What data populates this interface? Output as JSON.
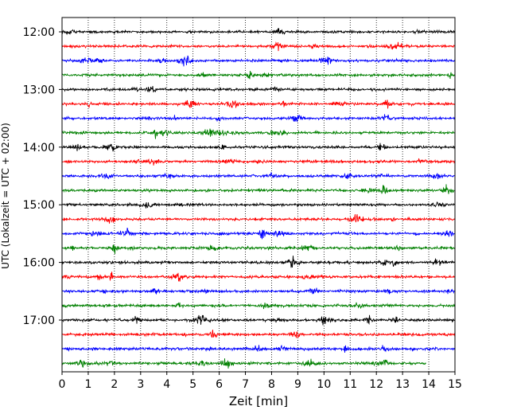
{
  "chart_data": {
    "type": "line",
    "title": "",
    "xlabel": "Zeit  [min]",
    "ylabel": "UTC (Lokalzeit = UTC + 02:00)",
    "xlim": [
      0,
      15
    ],
    "x_ticks": [
      "0",
      "1",
      "2",
      "3",
      "4",
      "5",
      "6",
      "7",
      "8",
      "9",
      "10",
      "11",
      "12",
      "13",
      "14",
      "15"
    ],
    "y_ticks": [
      "12:00",
      "13:00",
      "14:00",
      "15:00",
      "16:00",
      "17:00"
    ],
    "grid": "vertical dotted",
    "trace_colors": [
      "#000000",
      "#ff0000",
      "#0000ff",
      "#008000"
    ],
    "traces": [
      {
        "start": "12:00",
        "color": "#000000",
        "x_end": 15
      },
      {
        "start": "12:15",
        "color": "#ff0000",
        "x_end": 15
      },
      {
        "start": "12:30",
        "color": "#0000ff",
        "x_end": 15
      },
      {
        "start": "12:45",
        "color": "#008000",
        "x_end": 15
      },
      {
        "start": "13:00",
        "color": "#000000",
        "x_end": 15
      },
      {
        "start": "13:15",
        "color": "#ff0000",
        "x_end": 15
      },
      {
        "start": "13:30",
        "color": "#0000ff",
        "x_end": 15
      },
      {
        "start": "13:45",
        "color": "#008000",
        "x_end": 15
      },
      {
        "start": "14:00",
        "color": "#000000",
        "x_end": 15
      },
      {
        "start": "14:15",
        "color": "#ff0000",
        "x_end": 15
      },
      {
        "start": "14:30",
        "color": "#0000ff",
        "x_end": 15
      },
      {
        "start": "14:45",
        "color": "#008000",
        "x_end": 15
      },
      {
        "start": "15:00",
        "color": "#000000",
        "x_end": 15
      },
      {
        "start": "15:15",
        "color": "#ff0000",
        "x_end": 15
      },
      {
        "start": "15:30",
        "color": "#0000ff",
        "x_end": 15
      },
      {
        "start": "15:45",
        "color": "#008000",
        "x_end": 15
      },
      {
        "start": "16:00",
        "color": "#000000",
        "x_end": 15
      },
      {
        "start": "16:15",
        "color": "#ff0000",
        "x_end": 15
      },
      {
        "start": "16:30",
        "color": "#0000ff",
        "x_end": 15
      },
      {
        "start": "16:45",
        "color": "#008000",
        "x_end": 15
      },
      {
        "start": "17:00",
        "color": "#000000",
        "x_end": 15
      },
      {
        "start": "17:15",
        "color": "#ff0000",
        "x_end": 15
      },
      {
        "start": "17:30",
        "color": "#0000ff",
        "x_end": 15
      },
      {
        "start": "17:45",
        "color": "#008000",
        "x_end": 13.9
      }
    ]
  }
}
